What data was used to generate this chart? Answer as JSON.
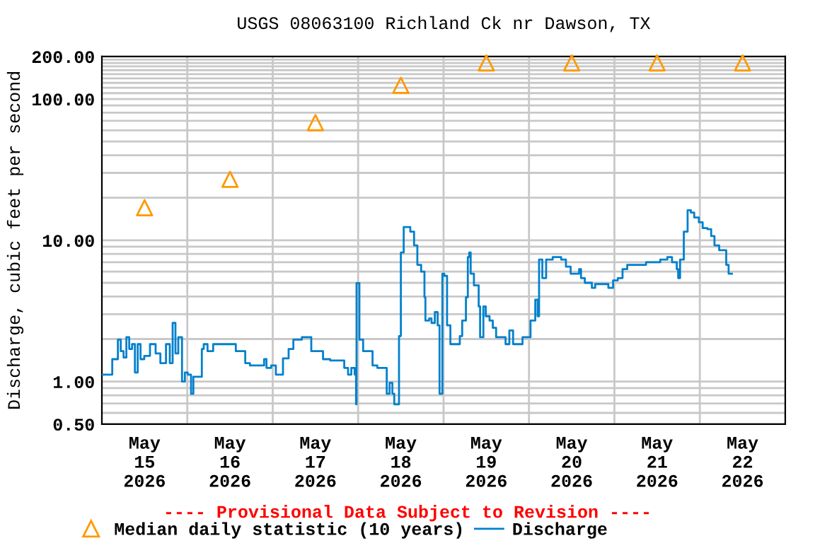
{
  "chart_data": {
    "type": "step",
    "title": "USGS 08063100 Richland Ck nr Dawson, TX",
    "ylabel": "Discharge, cubic feet per second",
    "annotations": [
      "---- Provisional Data Subject to Revision ----"
    ],
    "log": "y",
    "grid": true,
    "legend": "bottom",
    "xlim": [
      "2026-05-15T00:00",
      "2026-05-23T00:00"
    ],
    "xticks": [
      {
        "value": "2026-05-15T12:00",
        "label": "May\n15\n2026"
      },
      {
        "value": "2026-05-16T12:00",
        "label": "May\n16\n2026"
      },
      {
        "value": "2026-05-17T12:00",
        "label": "May\n17\n2026"
      },
      {
        "value": "2026-05-18T12:00",
        "label": "May\n18\n2026"
      },
      {
        "value": "2026-05-19T12:00",
        "label": "May\n19\n2026"
      },
      {
        "value": "2026-05-20T12:00",
        "label": "May\n20\n2026"
      },
      {
        "value": "2026-05-21T12:00",
        "label": "May\n21\n2026"
      },
      {
        "value": "2026-05-22T12:00",
        "label": "May\n22\n2026"
      },
      {
        "value": "2026-05-16T00:00",
        "label": null
      },
      {
        "value": "2026-05-17T00:00",
        "label": null
      },
      {
        "value": "2026-05-18T00:00",
        "label": null
      },
      {
        "value": "2026-05-19T00:00",
        "label": null
      },
      {
        "value": "2026-05-20T00:00",
        "label": null
      },
      {
        "value": "2026-05-21T00:00",
        "label": null
      },
      {
        "value": "2026-05-22T00:00",
        "label": null
      }
    ],
    "ylim": [
      0.5,
      200
    ],
    "yticks": [
      {
        "value": 0.5,
        "label": "0.50"
      },
      {
        "value": 1,
        "label": "1.00"
      },
      {
        "value": 10,
        "label": "10.00"
      },
      {
        "value": 100,
        "label": "100.00"
      },
      {
        "value": 200,
        "label": "200.00"
      },
      {
        "value": 0.6,
        "label": null
      },
      {
        "value": 0.7,
        "label": null
      },
      {
        "value": 0.8,
        "label": null
      },
      {
        "value": 0.9,
        "label": null
      },
      {
        "value": 2,
        "label": null
      },
      {
        "value": 3,
        "label": null
      },
      {
        "value": 4,
        "label": null
      },
      {
        "value": 5,
        "label": null
      },
      {
        "value": 6,
        "label": null
      },
      {
        "value": 7,
        "label": null
      },
      {
        "value": 8,
        "label": null
      },
      {
        "value": 9,
        "label": null
      },
      {
        "value": 20,
        "label": null
      },
      {
        "value": 30,
        "label": null
      },
      {
        "value": 40,
        "label": null
      },
      {
        "value": 50,
        "label": null
      },
      {
        "value": 60,
        "label": null
      },
      {
        "value": 70,
        "label": null
      },
      {
        "value": 80,
        "label": null
      },
      {
        "value": 90,
        "label": null
      },
      {
        "value": 110,
        "label": null
      },
      {
        "value": 120,
        "label": null
      },
      {
        "value": 130,
        "label": null
      },
      {
        "value": 140,
        "label": null
      },
      {
        "value": 150,
        "label": null
      },
      {
        "value": 160,
        "label": null
      },
      {
        "value": 170,
        "label": null
      },
      {
        "value": 180,
        "label": null
      },
      {
        "value": 190,
        "label": null
      }
    ],
    "series": [
      {
        "name": "Median daily statistic (10 years)",
        "type": "scatter",
        "marker": "triangle",
        "color": "#ff9900",
        "x": [
          "2026-05-15T12:00",
          "2026-05-16T12:00",
          "2026-05-17T12:00",
          "2026-05-18T12:00",
          "2026-05-19T12:00",
          "2026-05-20T12:00",
          "2026-05-21T12:00",
          "2026-05-22T12:00"
        ],
        "values": [
          17,
          27,
          68,
          125,
          180,
          180,
          180,
          180
        ]
      },
      {
        "name": "Discharge",
        "color": "#0080cc",
        "x": [
          "2026-05-15T00:16",
          "2026-05-15T02:07",
          "2026-05-15T02:55",
          "2026-05-15T03:59",
          "2026-05-15T04:30",
          "2026-05-15T05:18",
          "2026-05-15T06:06",
          "2026-05-15T06:53",
          "2026-05-15T07:41",
          "2026-05-15T08:29",
          "2026-05-15T09:17",
          "2026-05-15T10:04",
          "2026-05-15T10:52",
          "2026-05-15T11:55",
          "2026-05-15T13:31",
          "2026-05-15T15:06",
          "2026-05-15T16:26",
          "2026-05-15T18:01",
          "2026-05-15T19:05",
          "2026-05-15T19:53",
          "2026-05-15T20:40",
          "2026-05-15T21:28",
          "2026-05-15T22:31",
          "2026-05-15T23:19",
          "2026-05-16T00:07",
          "2026-05-16T01:03",
          "2026-05-16T01:42",
          "2026-05-16T02:46",
          "2026-05-16T04:05",
          "2026-05-16T04:37",
          "2026-05-16T05:41",
          "2026-05-16T07:16",
          "2026-05-16T09:39",
          "2026-05-16T12:18",
          "2026-05-16T13:38",
          "2026-05-16T15:37",
          "2026-05-16T16:17",
          "2026-05-16T17:36",
          "2026-05-16T19:36",
          "2026-05-16T21:35",
          "2026-05-16T22:15",
          "2026-05-16T23:34",
          "2026-05-17T00:53",
          "2026-05-17T02:53",
          "2026-05-17T04:28",
          "2026-05-17T05:48",
          "2026-05-17T08:11",
          "2026-05-17T10:10",
          "2026-05-17T10:50",
          "2026-05-17T12:25",
          "2026-05-17T14:08",
          "2026-05-17T16:08",
          "2026-05-17T18:47",
          "2026-05-17T20:06",
          "2026-05-17T21:10",
          "2026-05-17T22:05",
          "2026-05-17T23:01",
          "2026-05-17T23:25",
          "2026-05-17T23:33",
          "2026-05-18T00:05",
          "2026-05-18T00:21",
          "2026-05-18T01:24",
          "2026-05-18T02:44",
          "2026-05-18T04:03",
          "2026-05-18T05:23",
          "2026-05-18T06:58",
          "2026-05-18T08:02",
          "2026-05-18T08:50",
          "2026-05-18T09:37",
          "2026-05-18T10:09",
          "2026-05-18T11:21",
          "2026-05-18T11:29",
          "2026-05-18T12:00",
          "2026-05-18T12:48",
          "2026-05-18T13:36",
          "2026-05-18T14:39",
          "2026-05-18T15:43",
          "2026-05-18T16:38",
          "2026-05-18T17:42",
          "2026-05-18T18:38",
          "2026-05-18T18:54",
          "2026-05-18T19:57",
          "2026-05-18T20:37",
          "2026-05-18T21:33",
          "2026-05-18T22:20",
          "2026-05-18T22:52",
          "2026-05-18T23:40",
          "2026-05-19T00:12",
          "2026-05-19T00:59",
          "2026-05-19T01:55",
          "2026-05-19T03:14",
          "2026-05-19T04:34",
          "2026-05-19T05:14",
          "2026-05-19T06:17",
          "2026-05-19T06:49",
          "2026-05-19T07:13",
          "2026-05-19T07:37",
          "2026-05-19T08:32",
          "2026-05-19T09:52",
          "2026-05-19T10:16",
          "2026-05-19T11:11",
          "2026-05-19T11:51",
          "2026-05-19T12:55",
          "2026-05-19T13:50",
          "2026-05-19T14:46",
          "2026-05-19T16:29",
          "2026-05-19T17:25",
          "2026-05-19T18:29",
          "2026-05-19T19:32",
          "2026-05-19T20:52",
          "2026-05-19T22:11",
          "2026-05-19T23:31",
          "2026-05-20T00:26",
          "2026-05-20T01:46",
          "2026-05-20T02:26",
          "2026-05-20T02:50",
          "2026-05-20T03:45",
          "2026-05-20T04:49",
          "2026-05-20T06:40",
          "2026-05-20T09:03",
          "2026-05-20T10:23",
          "2026-05-20T11:42",
          "2026-05-20T13:41",
          "2026-05-20T14:05",
          "2026-05-20T14:37",
          "2026-05-20T15:41",
          "2026-05-20T17:40",
          "2026-05-20T18:36",
          "2026-05-20T20:59",
          "2026-05-20T22:18",
          "2026-05-20T23:38",
          "2026-05-21T00:57",
          "2026-05-21T02:17",
          "2026-05-21T03:36",
          "2026-05-21T06:15",
          "2026-05-21T08:54",
          "2026-05-21T10:53",
          "2026-05-21T12:53",
          "2026-05-21T14:52",
          "2026-05-21T16:11",
          "2026-05-21T17:31",
          "2026-05-21T17:55",
          "2026-05-21T18:27",
          "2026-05-21T19:30",
          "2026-05-21T20:34",
          "2026-05-21T21:29",
          "2026-05-21T22:25",
          "2026-05-21T23:44",
          "2026-05-22T00:48",
          "2026-05-22T02:07",
          "2026-05-22T03:11",
          "2026-05-22T04:07",
          "2026-05-22T05:26",
          "2026-05-22T07:25",
          "2026-05-22T08:05",
          "2026-05-22T09:01"
        ],
        "values": [
          1.12,
          1.12,
          1.44,
          1.44,
          1.98,
          1.64,
          1.48,
          2.06,
          1.7,
          1.84,
          1.16,
          1.84,
          1.44,
          1.52,
          1.84,
          1.58,
          1.35,
          1.84,
          1.35,
          2.6,
          1.58,
          2.06,
          1.0,
          1.16,
          1.12,
          0.82,
          1.08,
          1.08,
          1.7,
          1.84,
          1.64,
          1.84,
          1.84,
          1.84,
          1.64,
          1.64,
          1.35,
          1.3,
          1.3,
          1.44,
          1.25,
          1.3,
          1.12,
          1.46,
          1.7,
          1.98,
          2.06,
          2.06,
          1.64,
          1.64,
          1.44,
          1.41,
          1.41,
          1.25,
          1.12,
          1.25,
          1.12,
          0.69,
          4.97,
          4.97,
          1.98,
          1.64,
          1.64,
          1.3,
          1.25,
          1.25,
          0.82,
          0.98,
          0.82,
          0.69,
          0.69,
          2.1,
          8.2,
          12.4,
          12.4,
          11.5,
          9.2,
          6.7,
          6.0,
          3.95,
          2.7,
          2.8,
          2.6,
          3.1,
          2.5,
          0.82,
          5.8,
          5.6,
          2.5,
          1.84,
          1.84,
          2.1,
          2.7,
          3.95,
          7.6,
          8.2,
          5.8,
          4.8,
          3.4,
          2.06,
          3.4,
          2.9,
          2.7,
          2.4,
          2.06,
          2.06,
          1.84,
          2.3,
          1.84,
          1.84,
          2.06,
          2.06,
          2.7,
          3.8,
          2.9,
          7.3,
          5.4,
          7.3,
          7.6,
          7.3,
          6.5,
          5.8,
          5.8,
          6.25,
          5.4,
          5.0,
          4.6,
          4.9,
          4.9,
          4.6,
          5.2,
          5.4,
          6.25,
          6.7,
          6.7,
          7.0,
          7.0,
          7.3,
          7.6,
          7.0,
          6.25,
          5.4,
          7.3,
          11.5,
          16.3,
          15.7,
          14.5,
          13.4,
          12.2,
          12.0,
          10.7,
          9.2,
          8.5,
          6.7,
          5.8,
          5.8
        ]
      }
    ]
  }
}
